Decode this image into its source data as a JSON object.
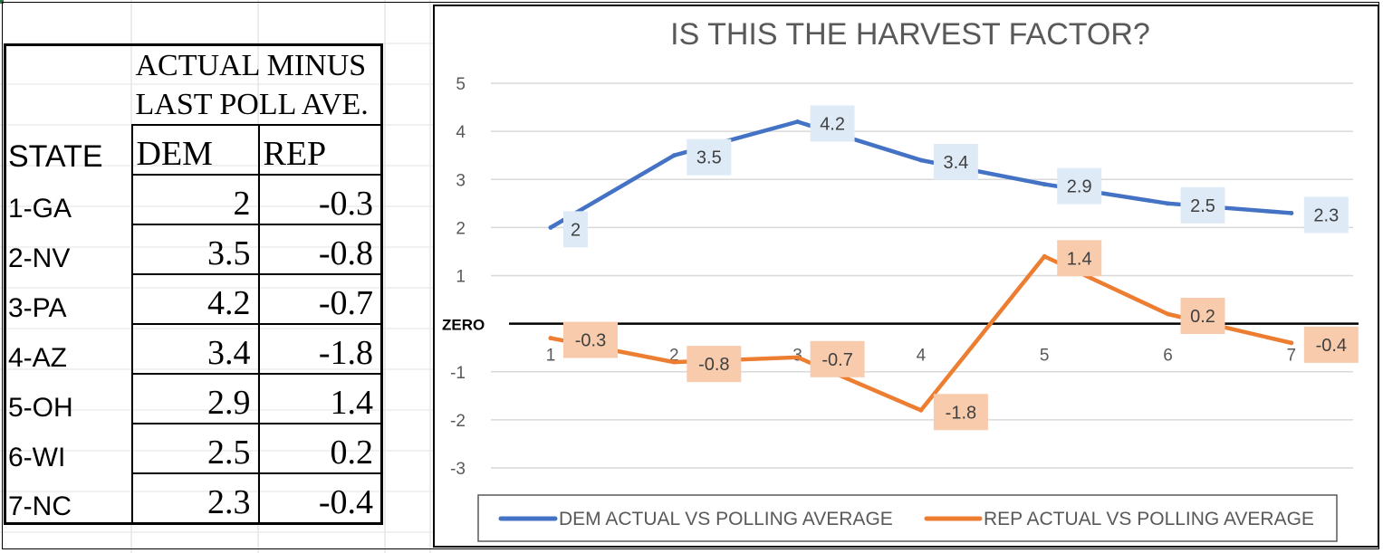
{
  "table": {
    "header_line1": "ACTUAL MINUS",
    "header_line2": "LAST POLL AVE.",
    "state_header": "STATE",
    "dem_header": "DEM",
    "rep_header": "REP",
    "rows": [
      {
        "state": "1-GA",
        "dem": "2",
        "rep": "-0.3"
      },
      {
        "state": "2-NV",
        "dem": "3.5",
        "rep": "-0.8"
      },
      {
        "state": "3-PA",
        "dem": "4.2",
        "rep": "-0.7"
      },
      {
        "state": "4-AZ",
        "dem": "3.4",
        "rep": "-1.8"
      },
      {
        "state": "5-OH",
        "dem": "2.9",
        "rep": "1.4"
      },
      {
        "state": "6-WI",
        "dem": "2.5",
        "rep": "0.2"
      },
      {
        "state": "7-NC",
        "dem": "2.3",
        "rep": "-0.4"
      }
    ]
  },
  "chart_data": {
    "type": "line",
    "title": "IS THIS THE HARVEST FACTOR?",
    "x": [
      1,
      2,
      3,
      4,
      5,
      6,
      7
    ],
    "series": [
      {
        "name": "DEM ACTUAL VS POLLING AVERAGE",
        "values": [
          2,
          3.5,
          4.2,
          3.4,
          2.9,
          2.5,
          2.3
        ],
        "color": "#4472C4",
        "label_bg": "#DEEBF7"
      },
      {
        "name": "REP ACTUAL VS POLLING AVERAGE",
        "values": [
          -0.3,
          -0.8,
          -0.7,
          -1.8,
          1.4,
          0.2,
          -0.4
        ],
        "color": "#ED7D31",
        "label_bg": "#F8CBAD"
      }
    ],
    "ylim": [
      -3,
      5
    ],
    "yticks": [
      5,
      4,
      3,
      2,
      1,
      -1,
      -2,
      -3
    ],
    "zero_label": "ZERO",
    "grid": true,
    "legend_position": "bottom"
  }
}
